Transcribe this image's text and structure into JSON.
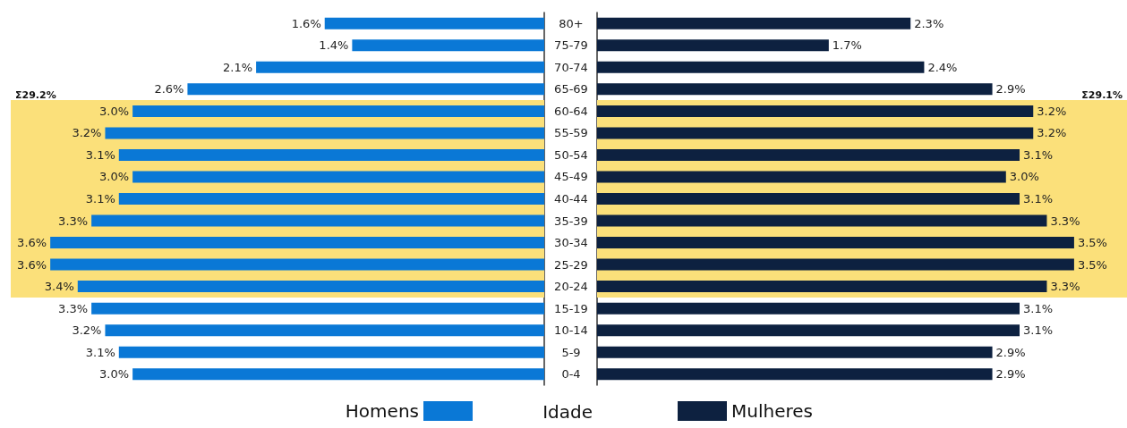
{
  "chart_data": [
    {
      "type": "bar",
      "orientation": "horizontal",
      "ylabel": "Idade",
      "legend": "bottom",
      "tick_labels": "y",
      "categories": [
        "80+",
        "75-79",
        "70-74",
        "65-69",
        "60-64",
        "55-59",
        "50-54",
        "45-49",
        "40-44",
        "35-39",
        "30-34",
        "25-29",
        "20-24",
        "15-19",
        "10-14",
        "5-9",
        "0-4"
      ],
      "series": [
        {
          "name": "Homens",
          "color": "#0a78d6",
          "values": [
            1.6,
            1.4,
            2.1,
            2.6,
            3.0,
            3.2,
            3.1,
            3.0,
            3.1,
            3.3,
            3.6,
            3.6,
            3.4,
            3.3,
            3.2,
            3.1,
            3.0
          ],
          "value_labels": [
            "1.6%",
            "1.4%",
            "2.1%",
            "2.6%",
            "3.0%",
            "3.2%",
            "3.1%",
            "3.0%",
            "3.1%",
            "3.3%",
            "3.6%",
            "3.6%",
            "3.4%",
            "3.3%",
            "3.2%",
            "3.1%",
            "3.0%"
          ]
        }
      ],
      "bands": [
        {
          "axis": "y",
          "from": "60-64",
          "to": "20-24",
          "label": "Σ29.2%",
          "color": "#fbe07a"
        }
      ]
    },
    {
      "type": "bar",
      "orientation": "horizontal",
      "legend": "bottom",
      "tick_labels": false,
      "categories": [
        "80+",
        "75-79",
        "70-74",
        "65-69",
        "60-64",
        "55-59",
        "50-54",
        "45-49",
        "40-44",
        "35-39",
        "30-34",
        "25-29",
        "20-24",
        "15-19",
        "10-14",
        "5-9",
        "0-4"
      ],
      "series": [
        {
          "name": "Mulheres",
          "color": "#0d2140",
          "values": [
            2.3,
            1.7,
            2.4,
            2.9,
            3.2,
            3.2,
            3.1,
            3.0,
            3.1,
            3.3,
            3.5,
            3.5,
            3.3,
            3.1,
            3.1,
            2.9,
            2.9
          ],
          "value_labels": [
            "2.3%",
            "1.7%",
            "2.4%",
            "2.9%",
            "3.2%",
            "3.2%",
            "3.1%",
            "3.0%",
            "3.1%",
            "3.3%",
            "3.5%",
            "3.5%",
            "3.3%",
            "3.1%",
            "3.1%",
            "2.9%",
            "2.9%"
          ]
        }
      ],
      "bands": [
        {
          "axis": "y",
          "from": "60-64",
          "to": "20-24",
          "label": "Σ29.1%",
          "color": "#fbe07a"
        }
      ]
    }
  ]
}
